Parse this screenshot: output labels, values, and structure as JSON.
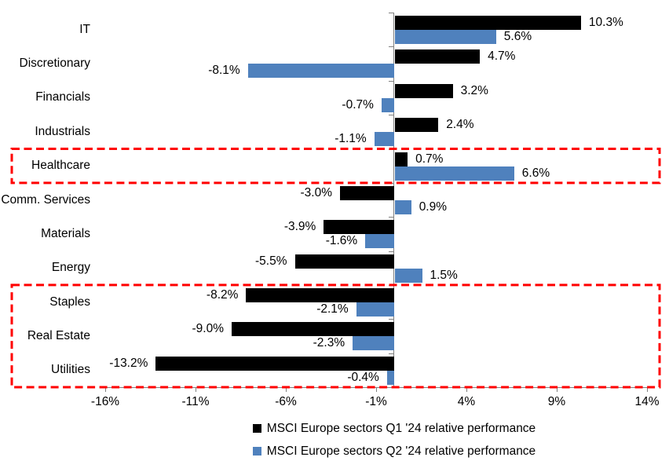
{
  "chart_data": {
    "type": "bar",
    "orientation": "horizontal",
    "title": "",
    "categories": [
      "IT",
      "Discretionary",
      "Financials",
      "Industrials",
      "Healthcare",
      "Comm. Services",
      "Materials",
      "Energy",
      "Staples",
      "Real Estate",
      "Utilities"
    ],
    "series": [
      {
        "name": "MSCI Europe sectors Q1 '24 relative performance",
        "color": "#000000",
        "values": [
          10.3,
          4.7,
          3.2,
          2.4,
          0.7,
          -3.0,
          -3.9,
          -5.5,
          -8.2,
          -9.0,
          -13.2
        ]
      },
      {
        "name": "MSCI Europe sectors Q2 '24 relative performance",
        "color": "#4F81BD",
        "values": [
          5.6,
          -8.1,
          -0.7,
          -1.1,
          6.6,
          0.9,
          -1.6,
          1.5,
          -2.1,
          -2.3,
          -0.4
        ]
      }
    ],
    "data_labels_shown": true,
    "value_label_suffix": "%",
    "x_axis": {
      "min": -16,
      "max": 14,
      "tick_values": [
        -16,
        -11,
        -6,
        -1,
        4,
        9,
        14
      ],
      "tick_labels": [
        "-16%",
        "-11%",
        "-6%",
        "-1%",
        "4%",
        "9%",
        "14%"
      ]
    },
    "grid": false,
    "legend_position": "bottom",
    "legend": [
      "MSCI Europe sectors Q1 '24 relative performance",
      "MSCI Europe sectors Q2 '24 relative performance"
    ],
    "highlights": [
      {
        "style": "red-dashed-box",
        "sectors": [
          "Healthcare"
        ],
        "row_start": 4,
        "row_end": 4
      },
      {
        "style": "red-dashed-box",
        "sectors": [
          "Staples",
          "Real Estate",
          "Utilities"
        ],
        "row_start": 8,
        "row_end": 10
      }
    ],
    "colors": {
      "series1": "#000000",
      "series2": "#4F81BD",
      "highlight": "#FF0000",
      "axis": "#808080",
      "text": "#000000",
      "background": "#FFFFFF"
    }
  }
}
